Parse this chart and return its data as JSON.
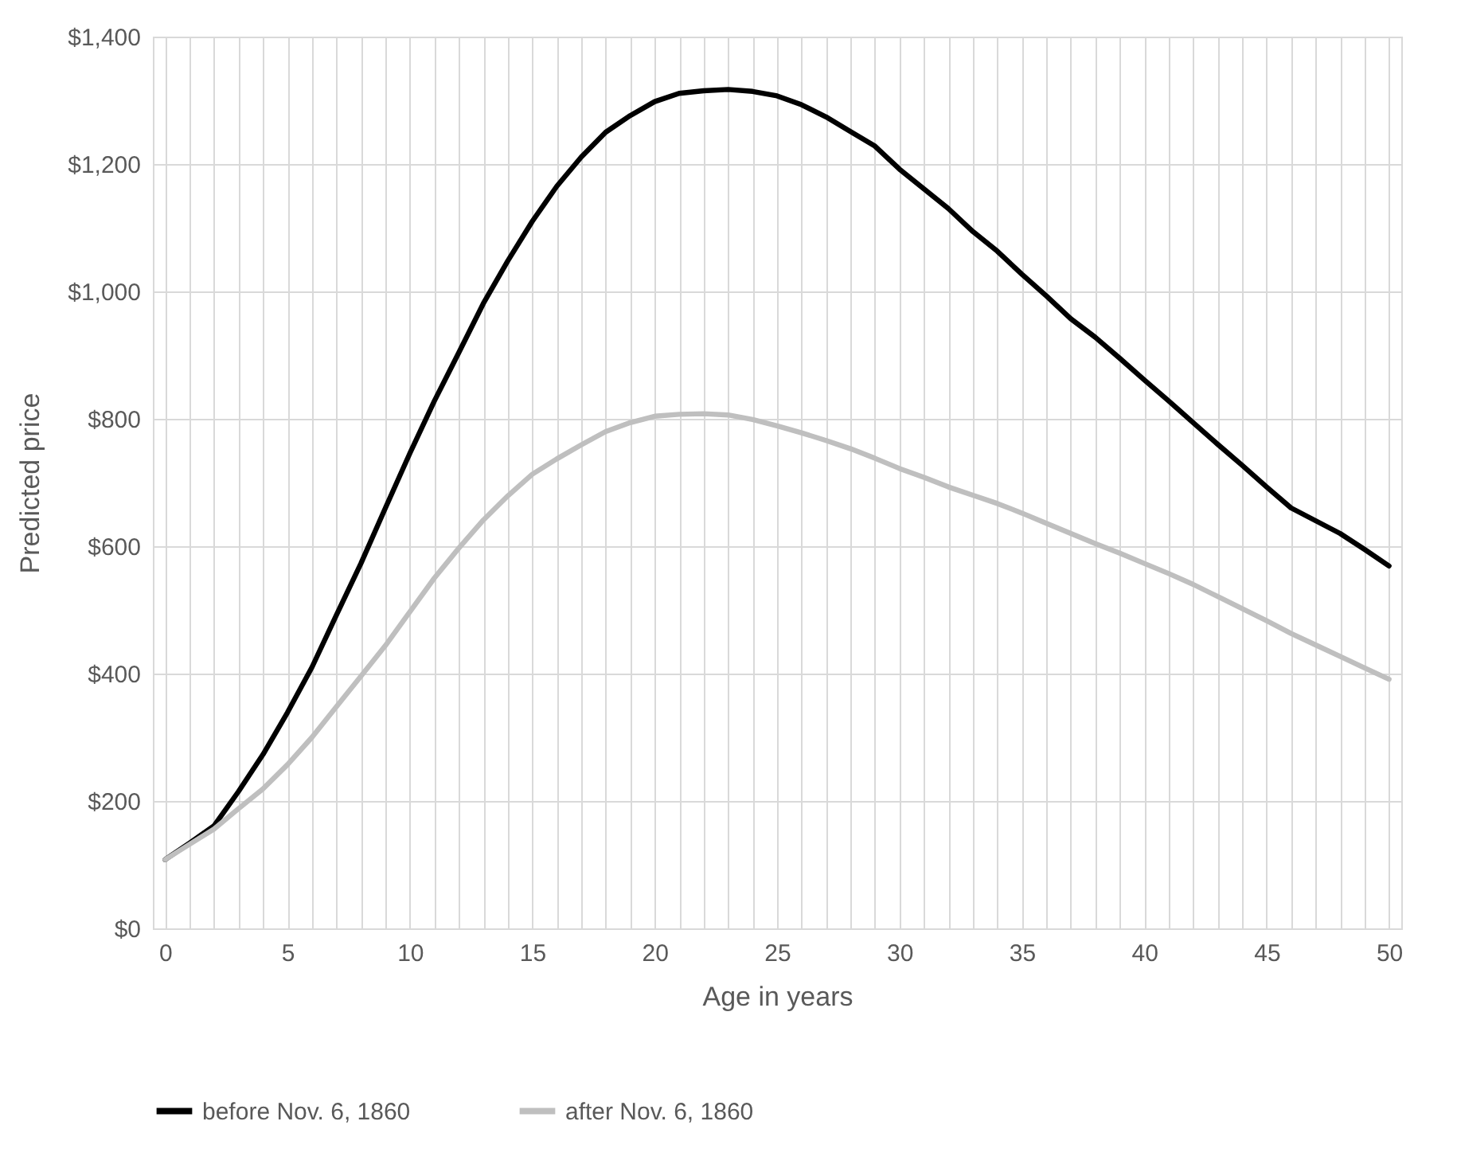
{
  "chart_data": {
    "type": "line",
    "xlabel": "Age in years",
    "ylabel": "Predicted price",
    "categories": [
      "0",
      null,
      null,
      null,
      null,
      "5",
      null,
      null,
      null,
      null,
      "10",
      null,
      null,
      null,
      null,
      "15",
      null,
      null,
      null,
      null,
      "20",
      null,
      null,
      null,
      null,
      "25",
      null,
      null,
      null,
      null,
      "30",
      null,
      null,
      null,
      null,
      "35",
      null,
      null,
      null,
      null,
      "40",
      null,
      null,
      null,
      null,
      "45",
      null,
      null,
      null,
      null,
      "50"
    ],
    "series": [
      {
        "name": "before Nov. 6, 1860",
        "color": "#000000",
        "values": [
          108,
          134,
          161,
          215,
          273,
          339,
          410,
          492,
          573,
          660,
          746,
          828,
          904,
          981,
          1048,
          1110,
          1165,
          1211,
          1250,
          1276,
          1298,
          1311,
          1315,
          1317,
          1314,
          1307,
          1293,
          1274,
          1251,
          1228,
          1192,
          1161,
          1130,
          1094,
          1063,
          1027,
          993,
          957,
          928,
          895,
          861,
          828,
          794,
          760,
          727,
          693,
          660,
          640,
          620,
          595,
          569
        ]
      },
      {
        "name": "after Nov. 6, 1860",
        "color": "#bfbfbf",
        "values": [
          108,
          132,
          156,
          188,
          219,
          257,
          300,
          348,
          396,
          444,
          497,
          550,
          597,
          641,
          679,
          713,
          737,
          759,
          780,
          794,
          804,
          807,
          808,
          806,
          799,
          789,
          778,
          766,
          753,
          738,
          722,
          708,
          693,
          680,
          667,
          652,
          636,
          620,
          604,
          589,
          573,
          557,
          540,
          521,
          502,
          483,
          463,
          445,
          427,
          409,
          391
        ]
      }
    ],
    "ylim": [
      0,
      1400
    ],
    "yticks": [
      {
        "value": 0,
        "label": "$0"
      },
      {
        "value": 200,
        "label": "$200"
      },
      {
        "value": 400,
        "label": "$400"
      },
      {
        "value": 600,
        "label": "$600"
      },
      {
        "value": 800,
        "label": "$800"
      },
      {
        "value": 1000,
        "label": "$1,000"
      },
      {
        "value": 1200,
        "label": "$1,200"
      },
      {
        "value": 1400,
        "label": "$1,400"
      }
    ],
    "grid": true,
    "legend": "bottom",
    "line_style": "solid"
  }
}
